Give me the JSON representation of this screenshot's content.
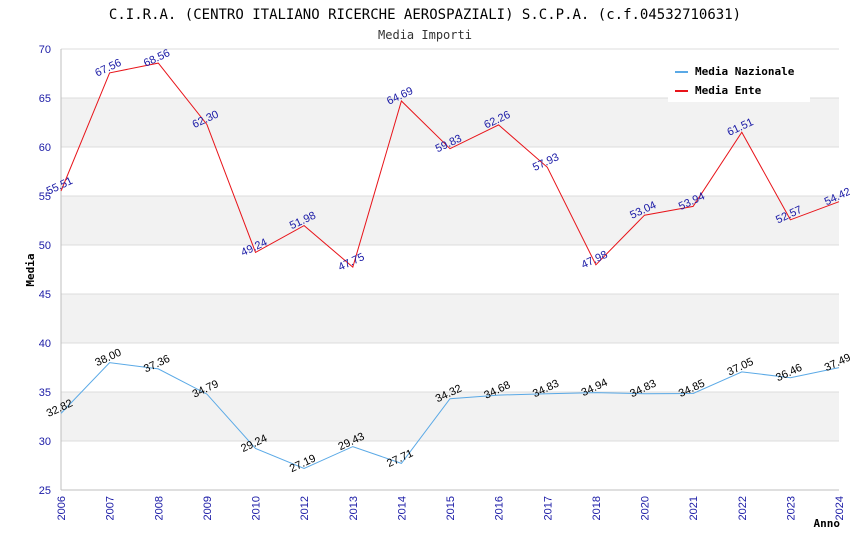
{
  "chart_data": {
    "type": "line",
    "title": "C.I.R.A. (CENTRO ITALIANO RICERCHE AEROSPAZIALI) S.C.P.A. (c.f.04532710631)",
    "subtitle": "Media Importi",
    "xlabel": "Anno",
    "ylabel": "Media",
    "ylim": [
      25,
      70
    ],
    "yticks": [
      "25",
      "30",
      "35",
      "40",
      "45",
      "50",
      "55",
      "60",
      "65",
      "70"
    ],
    "grid": "horizontal bands",
    "legend_position": "top-right",
    "categories": [
      "2006",
      "2007",
      "2008",
      "2009",
      "2010",
      "2012",
      "2013",
      "2014",
      "2015",
      "2016",
      "2017",
      "2018",
      "2020",
      "2021",
      "2022",
      "2023",
      "2024"
    ],
    "series": [
      {
        "name": "Media Nazionale",
        "color": "#5aa9e6",
        "values": [
          32.82,
          38.0,
          37.36,
          34.79,
          29.24,
          27.19,
          29.43,
          27.71,
          34.32,
          34.68,
          34.83,
          34.94,
          34.83,
          34.85,
          37.05,
          36.46,
          37.49
        ],
        "labels": [
          "32.82",
          "38.00",
          "37.36",
          "34.79",
          "29.24",
          "27.19",
          "29.43",
          "27.71",
          "34.32",
          "34.68",
          "34.83",
          "34.94",
          "34.83",
          "34.85",
          "37.05",
          "36.46",
          "37.49"
        ]
      },
      {
        "name": "Media Ente",
        "color": "#e8141a",
        "values": [
          55.51,
          67.56,
          68.56,
          62.3,
          49.24,
          51.98,
          47.75,
          64.69,
          59.83,
          62.26,
          57.93,
          47.98,
          53.04,
          53.94,
          61.51,
          52.57,
          54.42
        ],
        "labels": [
          "55.51",
          "67.56",
          "68.56",
          "62.30",
          "49.24",
          "51.98",
          "47.75",
          "64.69",
          "59.83",
          "62.26",
          "57.93",
          "47.98",
          "53.04",
          "53.94",
          "61.51",
          "52.57",
          "54.42"
        ]
      }
    ]
  }
}
